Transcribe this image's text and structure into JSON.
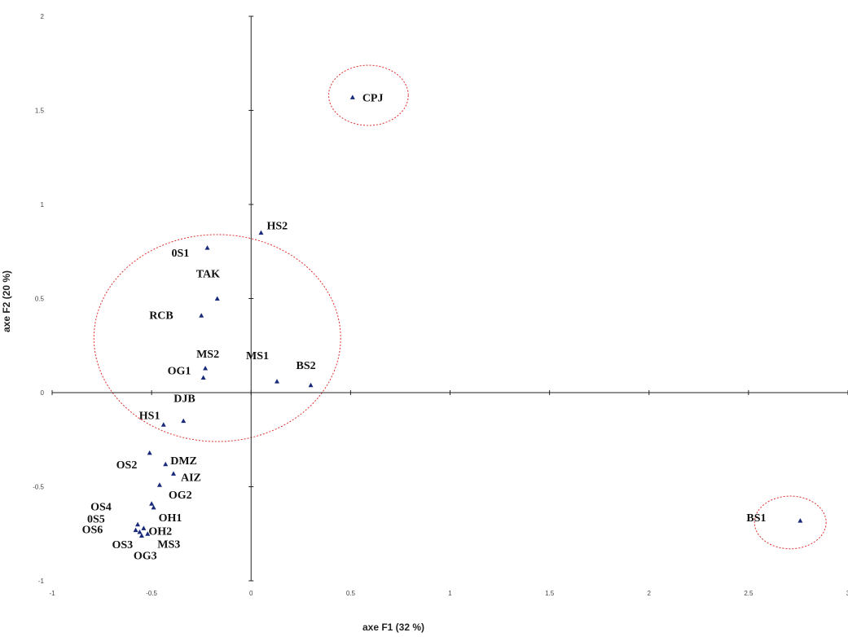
{
  "chart_data": {
    "type": "scatter",
    "title": "",
    "xlabel": "axe F1 (32 %)",
    "ylabel": "axe F2 (20 %)",
    "xlim": [
      -1,
      3
    ],
    "ylim": [
      -1,
      2
    ],
    "x_ticks": [
      "-1",
      "-0.5",
      "0",
      "0.5",
      "1",
      "1.5",
      "2",
      "2.5",
      "3"
    ],
    "y_ticks": [
      "-1",
      "-0.5",
      "0",
      "0.5",
      "1",
      "1.5",
      "2"
    ],
    "grid": false,
    "marker": "triangle",
    "marker_color": "#1a2a7a",
    "points": [
      {
        "label": "CPJ",
        "x": 0.51,
        "y": 1.57
      },
      {
        "label": "HS2",
        "x": 0.05,
        "y": 0.85
      },
      {
        "label": "0S1",
        "x": -0.22,
        "y": 0.77
      },
      {
        "label": "TAK",
        "x": -0.17,
        "y": 0.5
      },
      {
        "label": "RCB",
        "x": -0.25,
        "y": 0.41
      },
      {
        "label": "MS2",
        "x": -0.23,
        "y": 0.13
      },
      {
        "label": "OG1",
        "x": -0.24,
        "y": 0.08
      },
      {
        "label": "MS1",
        "x": 0.13,
        "y": 0.06
      },
      {
        "label": "BS2",
        "x": 0.3,
        "y": 0.04
      },
      {
        "label": "DJB",
        "x": -0.34,
        "y": -0.15
      },
      {
        "label": "HS1",
        "x": -0.44,
        "y": -0.17
      },
      {
        "label": "OS2",
        "x": -0.51,
        "y": -0.32
      },
      {
        "label": "DMZ",
        "x": -0.43,
        "y": -0.38
      },
      {
        "label": "AIZ",
        "x": -0.39,
        "y": -0.43
      },
      {
        "label": "OG2",
        "x": -0.46,
        "y": -0.49
      },
      {
        "label": "OS4",
        "x": -0.5,
        "y": -0.59
      },
      {
        "label": "OH1",
        "x": -0.49,
        "y": -0.61
      },
      {
        "label": "0S5",
        "x": -0.57,
        "y": -0.7
      },
      {
        "label": "OS6",
        "x": -0.58,
        "y": -0.73
      },
      {
        "label": "OH2",
        "x": -0.54,
        "y": -0.72
      },
      {
        "label": "OS3",
        "x": -0.56,
        "y": -0.74
      },
      {
        "label": "MS3",
        "x": -0.52,
        "y": -0.75
      },
      {
        "label": "OG3",
        "x": -0.55,
        "y": -0.76
      },
      {
        "label": "BS1",
        "x": 2.76,
        "y": -0.68
      }
    ],
    "groups": [
      {
        "members": [
          "CPJ"
        ],
        "center": [
          0.59,
          1.58
        ],
        "rx": 0.2,
        "ry": 0.16
      },
      {
        "members": [
          "HS2",
          "0S1",
          "TAK",
          "RCB",
          "MS2",
          "OG1",
          "MS1",
          "BS2",
          "DJB",
          "HS1"
        ],
        "center": [
          -0.17,
          0.29
        ],
        "rx": 0.62,
        "ry": 0.55
      },
      {
        "members": [
          "BS1"
        ],
        "center": [
          2.71,
          -0.69
        ],
        "rx": 0.18,
        "ry": 0.14
      }
    ],
    "outline_color": "#e03030"
  }
}
